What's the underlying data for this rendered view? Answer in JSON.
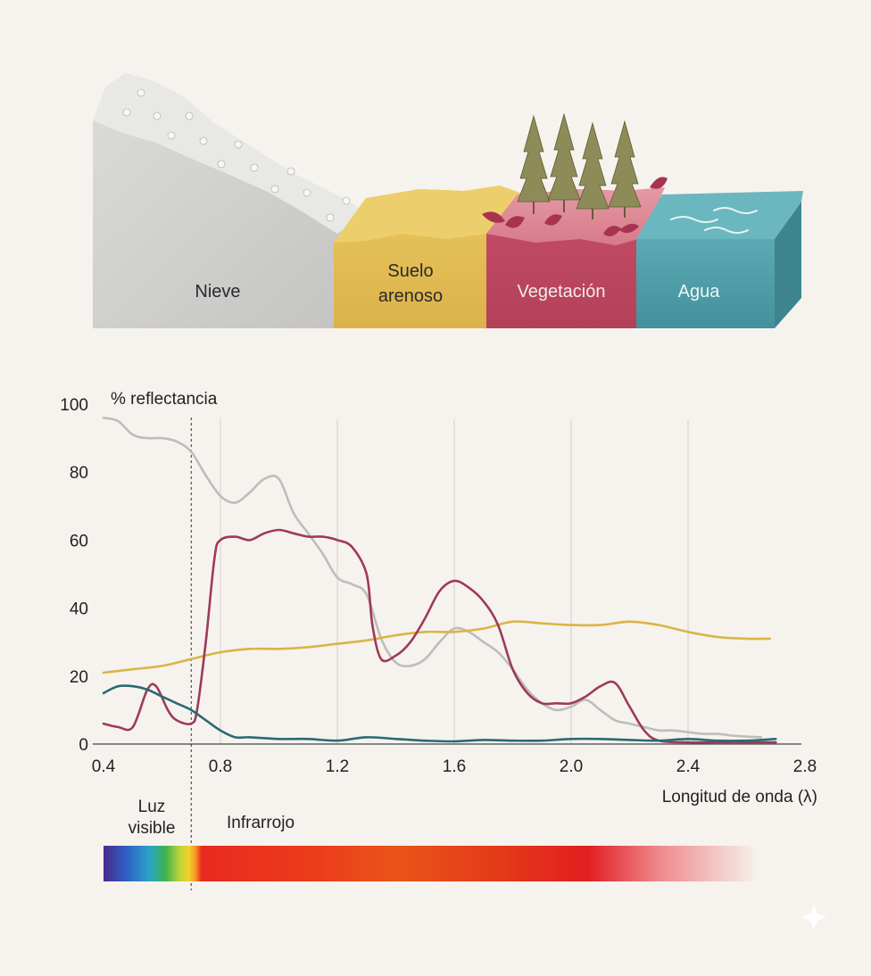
{
  "landscape": {
    "snow_label": "Nieve",
    "sand_label_line1": "Suelo",
    "sand_label_line2": "arenoso",
    "vegetation_label": "Vegetación",
    "water_label": "Agua",
    "colors": {
      "snow": "#cfcfcd",
      "sand": "#e5bf55",
      "vegetation": "#c04a63",
      "water": "#4fa0ab",
      "tree": "#8c8c5a"
    }
  },
  "chart_data": {
    "type": "line",
    "ylabel": "% reflectancia",
    "xlabel": "Longitud de onda (λ)",
    "xlim": [
      0.4,
      2.8
    ],
    "ylim": [
      0,
      100
    ],
    "x_ticks": [
      "0.4",
      "0.8",
      "1.2",
      "1.6",
      "2.0",
      "2.4",
      "2.8"
    ],
    "y_ticks": [
      "100",
      "80",
      "60",
      "40",
      "20",
      "0"
    ],
    "visible_boundary": 0.7,
    "grid": "vertical",
    "series": [
      {
        "name": "Nieve",
        "color": "#bdbdbb",
        "x": [
          0.4,
          0.45,
          0.5,
          0.55,
          0.6,
          0.65,
          0.7,
          0.75,
          0.8,
          0.85,
          0.9,
          0.95,
          1.0,
          1.05,
          1.1,
          1.15,
          1.2,
          1.25,
          1.3,
          1.35,
          1.4,
          1.45,
          1.5,
          1.55,
          1.6,
          1.65,
          1.7,
          1.75,
          1.8,
          1.85,
          1.9,
          1.95,
          2.0,
          2.05,
          2.1,
          2.15,
          2.2,
          2.25,
          2.3,
          2.35,
          2.4,
          2.45,
          2.5,
          2.55,
          2.6,
          2.65
        ],
        "values": [
          96,
          95,
          91,
          90,
          90,
          89,
          86,
          79,
          73,
          71,
          74,
          78,
          78,
          68,
          62,
          56,
          49,
          47,
          44,
          31,
          24,
          23,
          25,
          30,
          34,
          33,
          30,
          27,
          22,
          16,
          12,
          10,
          11,
          13,
          10,
          7,
          6,
          5,
          4,
          4,
          3.5,
          3,
          3,
          2.5,
          2.2,
          2
        ]
      },
      {
        "name": "Suelo arenoso",
        "color": "#d9b545",
        "x": [
          0.4,
          0.5,
          0.6,
          0.7,
          0.8,
          0.9,
          1.0,
          1.1,
          1.2,
          1.3,
          1.4,
          1.5,
          1.6,
          1.7,
          1.8,
          1.9,
          2.0,
          2.1,
          2.2,
          2.3,
          2.4,
          2.5,
          2.6,
          2.68
        ],
        "values": [
          21,
          22,
          23,
          25,
          27,
          28,
          28,
          28.5,
          29.5,
          30.5,
          32,
          33,
          33,
          34,
          36,
          35.5,
          35,
          35,
          36,
          35,
          33,
          31.5,
          31,
          31
        ]
      },
      {
        "name": "Vegetación",
        "color": "#9e3a5a",
        "x": [
          0.4,
          0.45,
          0.5,
          0.55,
          0.58,
          0.62,
          0.65,
          0.7,
          0.72,
          0.75,
          0.78,
          0.8,
          0.85,
          0.9,
          0.95,
          1.0,
          1.05,
          1.1,
          1.15,
          1.2,
          1.25,
          1.3,
          1.32,
          1.35,
          1.4,
          1.45,
          1.5,
          1.55,
          1.6,
          1.65,
          1.7,
          1.75,
          1.8,
          1.85,
          1.9,
          1.95,
          2.0,
          2.05,
          2.1,
          2.15,
          2.2,
          2.25,
          2.3,
          2.4,
          2.5,
          2.6,
          2.7
        ],
        "values": [
          6,
          5,
          5,
          16,
          17,
          10,
          7,
          6,
          10,
          30,
          55,
          60,
          61,
          60,
          62,
          63,
          62,
          61,
          61,
          60,
          58,
          50,
          35,
          25,
          26,
          30,
          37,
          45,
          48,
          46,
          42,
          35,
          22,
          15,
          12,
          12,
          12,
          14,
          17,
          18,
          11,
          4,
          1,
          0.5,
          0.5,
          0.5,
          0.5
        ]
      },
      {
        "name": "Agua",
        "color": "#2a6a74",
        "x": [
          0.4,
          0.45,
          0.5,
          0.55,
          0.6,
          0.65,
          0.7,
          0.75,
          0.8,
          0.85,
          0.9,
          1.0,
          1.1,
          1.2,
          1.3,
          1.4,
          1.5,
          1.6,
          1.7,
          1.8,
          1.9,
          2.0,
          2.1,
          2.2,
          2.3,
          2.4,
          2.5,
          2.6,
          2.7
        ],
        "values": [
          15,
          17,
          17,
          16,
          14,
          12,
          10,
          7,
          4,
          2,
          2,
          1.5,
          1.5,
          1,
          2,
          1.5,
          1,
          0.8,
          1.2,
          1,
          1,
          1.5,
          1.5,
          1.2,
          1,
          1.5,
          1,
          1,
          1.5
        ]
      }
    ]
  },
  "spectrum": {
    "visible_label_line1": "Luz",
    "visible_label_line2": "visible",
    "infrared_label": "Infrarrojo"
  }
}
